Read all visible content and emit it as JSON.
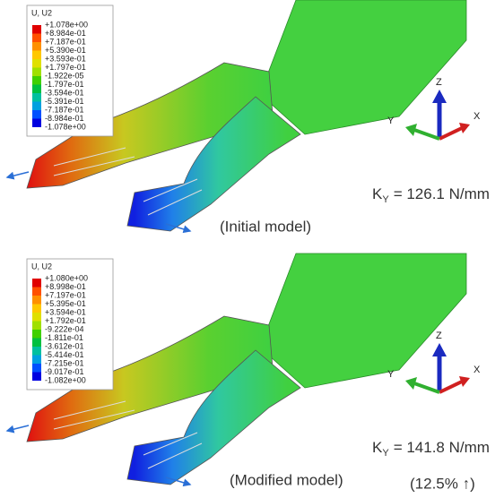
{
  "panels": [
    {
      "legend": {
        "title": "U, U2",
        "labels": [
          "+1.078e+00",
          "+8.984e-01",
          "+7.187e-01",
          "+5.390e-01",
          "+3.593e-01",
          "+1.797e-01",
          "-1.922e-05",
          "-1.797e-01",
          "-3.594e-01",
          "-5.391e-01",
          "-7.187e-01",
          "-8.984e-01",
          "-1.078e+00"
        ]
      },
      "axes": {
        "z": "Z",
        "y": "Y",
        "x": "X"
      },
      "stiffness": {
        "symbol": "K",
        "subscript": "Y",
        "value": "= 126.1 N/mm"
      },
      "caption": "(Initial model)"
    },
    {
      "legend": {
        "title": "U, U2",
        "labels": [
          "+1.080e+00",
          "+8.998e-01",
          "+7.197e-01",
          "+5.395e-01",
          "+3.594e-01",
          "+1.792e-01",
          "-9.222e-04",
          "-1.811e-01",
          "-3.612e-01",
          "-5.414e-01",
          "-7.215e-01",
          "-9.017e-01",
          "-1.082e+00"
        ]
      },
      "axes": {
        "z": "Z",
        "y": "Y",
        "x": "X"
      },
      "stiffness": {
        "symbol": "K",
        "subscript": "Y",
        "value": "= 141.8 N/mm"
      },
      "caption": "(Modified model)",
      "improvement": "(12.5% ↑)"
    }
  ]
}
